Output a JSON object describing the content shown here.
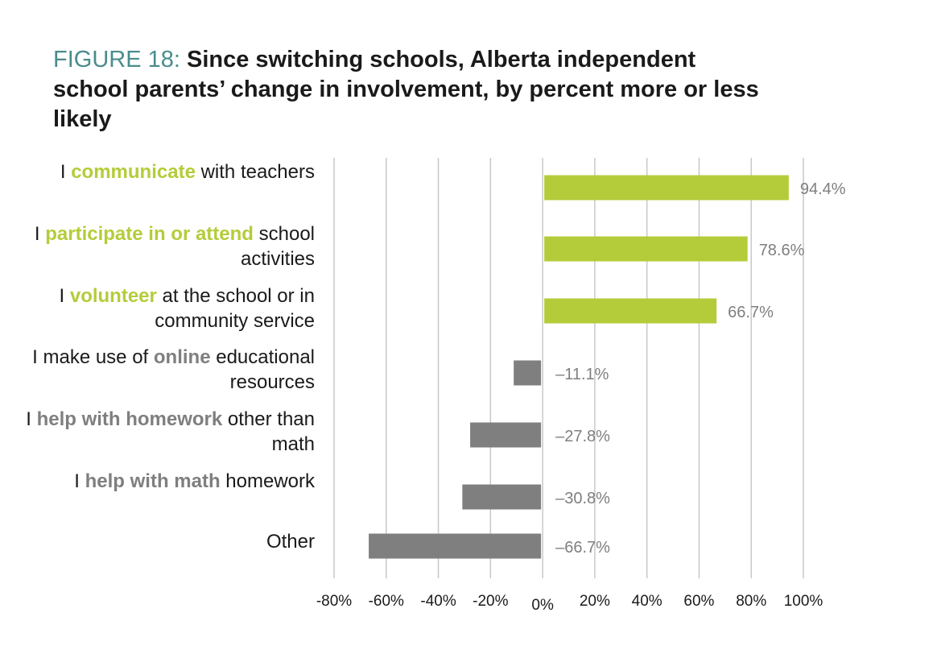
{
  "title": {
    "prefix": "FIGURE 18: ",
    "text": "Since switching schools, Alberta independent school parents’ change in involvement, by percent more or less likely"
  },
  "chart_data": {
    "type": "bar",
    "orientation": "horizontal",
    "categories": [
      "I communicate with teachers",
      "I participate in or attend school activities",
      "I volunteer at the school or in community service",
      "I make use of online educational resources",
      "I help with homework other than math",
      "I help with math homework",
      "Other"
    ],
    "category_label_parts": [
      [
        [
          "I ",
          ""
        ],
        [
          "communicate",
          "pos"
        ],
        [
          " with teachers",
          ""
        ]
      ],
      [
        [
          "I ",
          ""
        ],
        [
          "participate in or attend",
          "pos"
        ],
        [
          " school activities",
          ""
        ]
      ],
      [
        [
          "I ",
          ""
        ],
        [
          "volunteer",
          "pos"
        ],
        [
          " at the school or in community service",
          ""
        ]
      ],
      [
        [
          "I make use of ",
          ""
        ],
        [
          "online",
          "neg"
        ],
        [
          " educational resources",
          ""
        ]
      ],
      [
        [
          "I ",
          ""
        ],
        [
          "help with homework",
          "neg"
        ],
        [
          " other than math",
          ""
        ]
      ],
      [
        [
          "I ",
          ""
        ],
        [
          "help with math",
          "neg"
        ],
        [
          " homework",
          ""
        ]
      ],
      [
        [
          "Other",
          ""
        ]
      ]
    ],
    "values": [
      94.4,
      78.6,
      66.7,
      -11.1,
      -27.8,
      -30.8,
      -66.7
    ],
    "value_labels": [
      "94.4%",
      "78.6%",
      "66.7%",
      "–11.1%",
      "–27.8%",
      "–30.8%",
      "–66.7%"
    ],
    "xlim": [
      -80,
      100
    ],
    "ticks": [
      -80,
      -60,
      -40,
      -20,
      0,
      20,
      40,
      60,
      80,
      100
    ],
    "tick_labels": [
      "-80%",
      "-60%",
      "-40%",
      "-20%",
      "0%",
      "20%",
      "40%",
      "60%",
      "80%",
      "100%"
    ],
    "grid": "vertical",
    "legend": "none",
    "colors": {
      "positive": "#b5cc3a",
      "negative": "#7f7f7f",
      "grid": "#c8c8c8"
    }
  }
}
